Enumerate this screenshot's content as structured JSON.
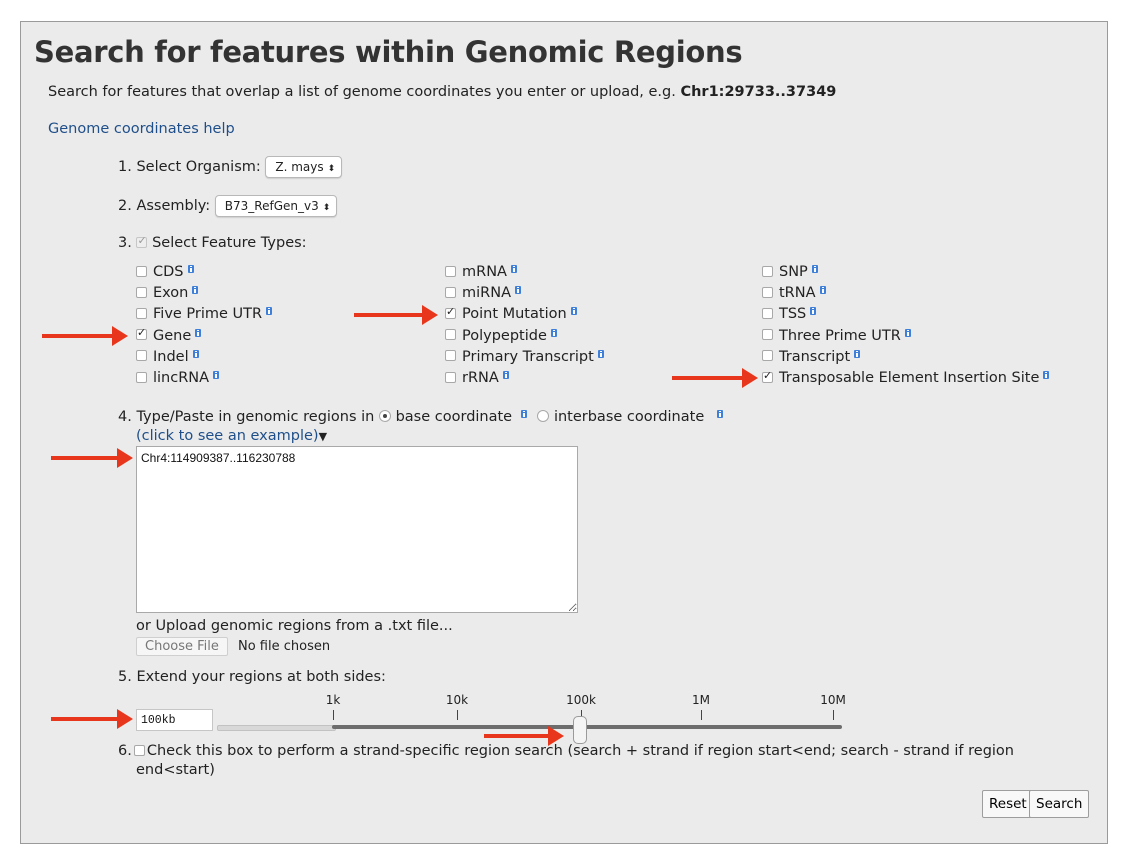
{
  "header": {
    "title": "Search for features within Genomic Regions",
    "intro": "Search for features that overlap a list of genome coordinates you enter or upload, e.g.",
    "intro_example": "Chr1:29733..37349",
    "help_link": "Genome coordinates help"
  },
  "step1": {
    "label": "1. Select Organism:",
    "value": "Z. mays"
  },
  "step2": {
    "label": "2. Assembly:",
    "value": "B73_RefGen_v3"
  },
  "step3": {
    "label": "3.",
    "title": "Select Feature Types:",
    "columns": [
      [
        {
          "label": "CDS",
          "checked": false
        },
        {
          "label": "Exon",
          "checked": false
        },
        {
          "label": "Five Prime UTR",
          "checked": false
        },
        {
          "label": "Gene",
          "checked": true
        },
        {
          "label": "Indel",
          "checked": false
        },
        {
          "label": "lincRNA",
          "checked": false
        }
      ],
      [
        {
          "label": "mRNA",
          "checked": false
        },
        {
          "label": "miRNA",
          "checked": false
        },
        {
          "label": "Point Mutation",
          "checked": true
        },
        {
          "label": "Polypeptide",
          "checked": false
        },
        {
          "label": "Primary Transcript",
          "checked": false
        },
        {
          "label": "rRNA",
          "checked": false
        }
      ],
      [
        {
          "label": "SNP",
          "checked": false
        },
        {
          "label": "tRNA",
          "checked": false
        },
        {
          "label": "TSS",
          "checked": false
        },
        {
          "label": "Three Prime UTR",
          "checked": false
        },
        {
          "label": "Transcript",
          "checked": false
        },
        {
          "label": "Transposable Element Insertion Site",
          "checked": true
        }
      ]
    ]
  },
  "step4": {
    "label": "4. Type/Paste in genomic regions in",
    "option_base": "base coordinate",
    "option_interbase": "interbase coordinate",
    "example_link": "(click to see an example)",
    "regions": "Chr4:114909387..116230788",
    "upload_label": "or Upload genomic regions from a .txt file...",
    "choose_file": "Choose File",
    "no_file": "No file chosen"
  },
  "step5": {
    "label": "5. Extend your regions at both sides:",
    "value": "100kb",
    "ticks": [
      "1k",
      "10k",
      "100k",
      "1M",
      "10M"
    ]
  },
  "step6": {
    "label": "6.",
    "text": "Check this box to perform a strand-specific region search (search + strand if region start<end; search - strand if region",
    "text2": "end<start)"
  },
  "buttons": {
    "reset": "Reset",
    "search": "Search"
  },
  "colors": {
    "annotation_arrow": "#e8361c",
    "link": "#1f4f8a",
    "info_icon": "#3d7fd9"
  }
}
